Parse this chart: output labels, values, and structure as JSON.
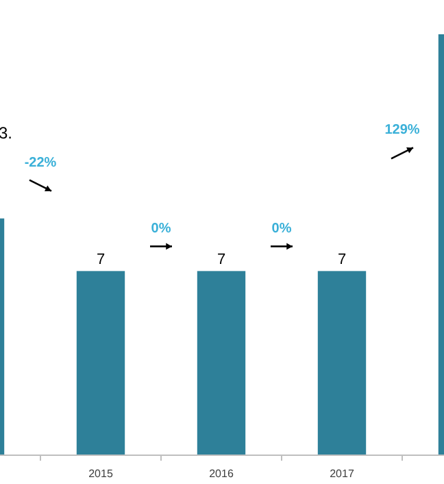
{
  "chart_data": {
    "type": "bar",
    "categories": [
      null,
      "2015",
      "2016",
      "2017",
      null
    ],
    "values": [
      9,
      7,
      7,
      7,
      16
    ],
    "color": "#2e8099",
    "value_labels": [
      null,
      "7",
      "7",
      "7",
      null
    ],
    "annotations": [
      "3.",
      "-22%",
      "0%",
      "0%",
      "129%"
    ]
  }
}
